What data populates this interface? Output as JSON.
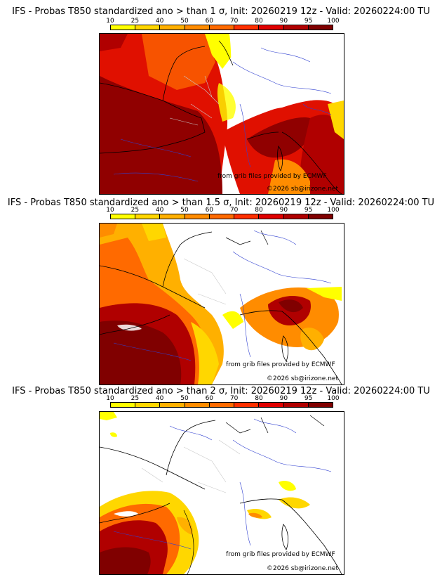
{
  "panels": [
    {
      "title": "IFS - Probas T850  standardized ano > than 1 σ, Init: 20260219 12z - Valid: 20260224:00 TU",
      "credit_grib": "from grib files provided by ECMWF",
      "credit_copy": "©2026 sb@irizone.net"
    },
    {
      "title": "IFS - Probas T850  standardized ano > than 1.5 σ, Init: 20260219 12z - Valid: 20260224:00 TU",
      "credit_grib": "from grib files provided by ECMWF",
      "credit_copy": "©2026 sb@irizone.net"
    },
    {
      "title": "IFS - Probas T850  standardized ano > than 2 σ, Init: 20260219 12z - Valid: 20260224:00 TU",
      "credit_grib": "from grib files provided by ECMWF",
      "credit_copy": "©2026 sb@irizone.net"
    }
  ],
  "scale": {
    "ticks": [
      "10",
      "25",
      "40",
      "50",
      "60",
      "70",
      "80",
      "90",
      "95",
      "100"
    ],
    "colors": [
      "#ffff00",
      "#ffd700",
      "#ffb000",
      "#ff8c00",
      "#ff6a00",
      "#ff3000",
      "#e00000",
      "#b00000",
      "#800000"
    ]
  }
}
